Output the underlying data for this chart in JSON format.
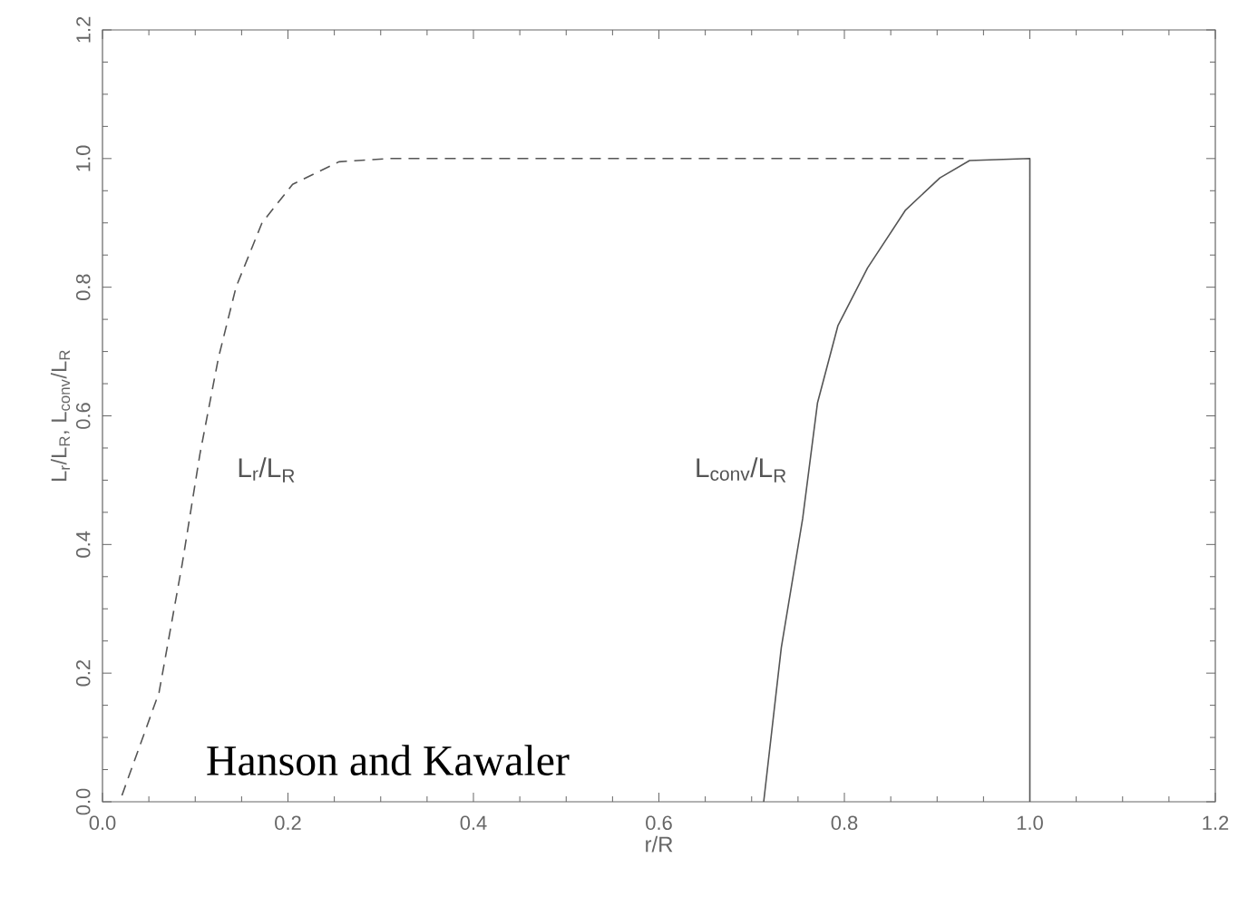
{
  "chart_data": {
    "type": "line",
    "xlabel": "r/R",
    "ylabel": "L$_{r}$/L$_{R}$, L$_{conv}$/L$_{R}$",
    "xlim": [
      0,
      1.2
    ],
    "ylim": [
      0,
      1.2
    ],
    "xticks": [
      {
        "value": 0,
        "label": "0.0"
      },
      {
        "value": 0.2,
        "label": "0.2"
      },
      {
        "value": 0.4,
        "label": "0.4"
      },
      {
        "value": 0.6,
        "label": "0.6"
      },
      {
        "value": 0.8,
        "label": "0.8"
      },
      {
        "value": 1.0,
        "label": "1.0"
      },
      {
        "value": 1.2,
        "label": "1.2"
      }
    ],
    "yticks": [
      {
        "value": 0,
        "label": "0.0"
      },
      {
        "value": 0.2,
        "label": "0.2"
      },
      {
        "value": 0.4,
        "label": "0.4"
      },
      {
        "value": 0.6,
        "label": "0.6"
      },
      {
        "value": 0.8,
        "label": "0.8"
      },
      {
        "value": 1.0,
        "label": "1.0"
      },
      {
        "value": 1.2,
        "label": "1.2"
      }
    ],
    "series": [
      {
        "name": "L$_{r}$/L$_{R}$",
        "color": "#555555",
        "line_style": "dashed",
        "x": [
          0.021,
          0.061,
          0.086,
          0.105,
          0.125,
          0.144,
          0.172,
          0.205,
          0.255,
          0.31,
          0.935
        ],
        "values": [
          0.01,
          0.17,
          0.37,
          0.54,
          0.69,
          0.8,
          0.9,
          0.96,
          0.995,
          1.0,
          1.0
        ]
      },
      {
        "name": "L$_{conv}$/L$_{R}$",
        "color": "#555555",
        "line_style": "solid",
        "x": [
          0.713,
          0.732,
          0.755,
          0.771,
          0.793,
          0.825,
          0.866,
          0.903,
          0.935,
          1.0,
          1.0
        ],
        "values": [
          0,
          0.24,
          0.44,
          0.62,
          0.74,
          0.83,
          0.92,
          0.97,
          0.997,
          1.0,
          0
        ]
      }
    ],
    "annotations": [
      "Hanson and Kawaler"
    ]
  }
}
